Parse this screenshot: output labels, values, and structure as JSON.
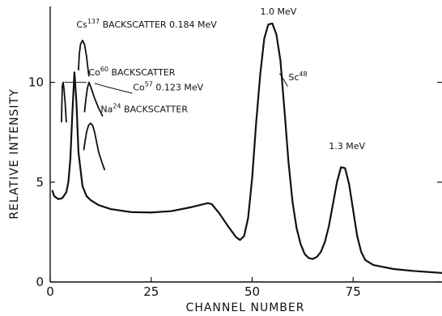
{
  "chart_data": {
    "type": "line",
    "title": "",
    "xlabel": "CHANNEL NUMBER",
    "ylabel": "RELATIVE INTENSITY",
    "xlim": [
      0,
      97
    ],
    "ylim": [
      0,
      13.8
    ],
    "x_ticks": [
      0,
      25,
      50,
      75
    ],
    "y_ticks": [
      0,
      5,
      10
    ],
    "grid": false,
    "series": [
      {
        "x": [
          0.5,
          1,
          2,
          3,
          4,
          4.5,
          5,
          5.5,
          6,
          6.5,
          7,
          8,
          9,
          10,
          12,
          15,
          20,
          25,
          30,
          35,
          39,
          40,
          42,
          44,
          46,
          47,
          48,
          49,
          50,
          51,
          52,
          53,
          54,
          55,
          56,
          57,
          58,
          59,
          60,
          61,
          62,
          63,
          64,
          65,
          66,
          67,
          68,
          69,
          70,
          71,
          72,
          73,
          74,
          75,
          76,
          77,
          78,
          80,
          85,
          90,
          97
        ],
        "y": [
          4.6,
          4.3,
          4.15,
          4.2,
          4.5,
          5.0,
          6.2,
          8.5,
          10.5,
          9.0,
          6.5,
          4.8,
          4.3,
          4.1,
          3.85,
          3.65,
          3.5,
          3.48,
          3.55,
          3.75,
          3.95,
          3.9,
          3.4,
          2.8,
          2.25,
          2.1,
          2.3,
          3.2,
          5.2,
          8.0,
          10.4,
          12.2,
          12.9,
          12.95,
          12.4,
          11.1,
          8.6,
          6.0,
          4.0,
          2.7,
          1.9,
          1.4,
          1.2,
          1.15,
          1.25,
          1.5,
          2.0,
          2.8,
          3.9,
          5.0,
          5.75,
          5.7,
          4.9,
          3.6,
          2.3,
          1.5,
          1.1,
          0.85,
          0.65,
          0.55,
          0.45
        ]
      }
    ],
    "inset_curves": [
      {
        "x": [
          2.8,
          2.9,
          3.0,
          3.2,
          3.4,
          3.7,
          4.0
        ],
        "y": [
          8.0,
          9.0,
          9.8,
          10.0,
          9.7,
          9.0,
          8.0
        ]
      },
      {
        "x": [
          7.0,
          7.2,
          7.5,
          8.0,
          8.5,
          9.0,
          9.4,
          9.6
        ],
        "y": [
          10.6,
          11.4,
          11.9,
          12.1,
          11.9,
          11.3,
          10.6,
          10.3
        ]
      },
      {
        "x": [
          8.5,
          8.8,
          9.2,
          9.6,
          10.0,
          11.0,
          12.0,
          13.0
        ],
        "y": [
          8.5,
          9.1,
          9.7,
          10.0,
          9.8,
          9.2,
          8.7,
          8.3
        ]
      },
      {
        "x": [
          8.3,
          8.6,
          9.0,
          9.5,
          10.0,
          10.5,
          11.0,
          11.5,
          12.0,
          12.8,
          13.5
        ],
        "y": [
          6.6,
          7.0,
          7.5,
          7.85,
          7.95,
          7.85,
          7.5,
          7.0,
          6.5,
          6.0,
          5.6
        ]
      }
    ],
    "annotations": [
      {
        "id": "cs137",
        "base": "Cs",
        "sup": "137",
        "rest": " BACKSCATTER 0.184 MeV",
        "x": 6.5,
        "y": 12.75
      },
      {
        "id": "co60",
        "base": "Co",
        "sup": "60",
        "rest": " BACKSCATTER",
        "x": 9.5,
        "y": 10.35
      },
      {
        "id": "co57",
        "base": "Co",
        "sup": "57",
        "rest": " 0.123 MeV",
        "x": 20.5,
        "y": 9.6
      },
      {
        "id": "na24",
        "base": "Na",
        "sup": "24",
        "rest": " BACKSCATTER",
        "x": 12.5,
        "y": 8.5
      },
      {
        "id": "peak1",
        "base": "1.0 MeV",
        "sup": "",
        "rest": "",
        "x": 52,
        "y": 13.4
      },
      {
        "id": "sc48",
        "base": "Sc",
        "sup": "48",
        "rest": "",
        "x": 59,
        "y": 10.1
      },
      {
        "id": "peak13",
        "base": "1.3 MeV",
        "sup": "",
        "rest": "",
        "x": 69,
        "y": 6.65
      }
    ]
  }
}
